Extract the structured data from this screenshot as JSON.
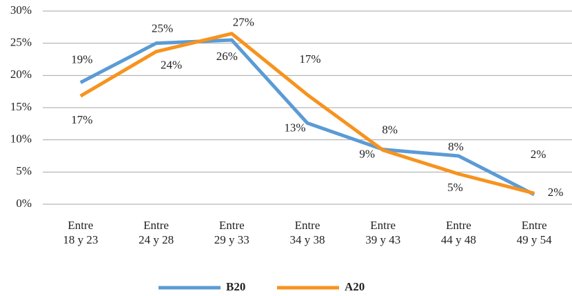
{
  "chart_data": {
    "type": "line",
    "categories": [
      "Entre\n18 y 23",
      "Entre\n24 y 28",
      "Entre\n29 y 33",
      "Entre\n34 y 38",
      "Entre\n39 y 43",
      "Entre\n44 y 48",
      "Entre\n49 y 54"
    ],
    "series": [
      {
        "name": "B20",
        "color": "#5b9bd5",
        "values": [
          18.9,
          25,
          25.5,
          12.6,
          8.5,
          7.5,
          1.5
        ],
        "value_labels": [
          "19%",
          "25%",
          "26%",
          "13%",
          "9%",
          "8%",
          "2%"
        ]
      },
      {
        "name": "A20",
        "color": "#f7931e",
        "values": [
          16.8,
          23.7,
          26.5,
          17,
          8.4,
          4.7,
          1.7
        ],
        "value_labels": [
          "17%",
          "24%",
          "27%",
          "17%",
          "8%",
          "5%",
          "2%"
        ]
      }
    ],
    "ylim": [
      0,
      30
    ],
    "yticks": [
      {
        "value": 0,
        "label": "0%"
      },
      {
        "value": 5,
        "label": "5%"
      },
      {
        "value": 10,
        "label": "10%"
      },
      {
        "value": 15,
        "label": "15%"
      },
      {
        "value": 20,
        "label": "20%"
      },
      {
        "value": 25,
        "label": "25%"
      },
      {
        "value": 30,
        "label": "30%"
      }
    ],
    "grid": true,
    "legend": "bottom"
  }
}
